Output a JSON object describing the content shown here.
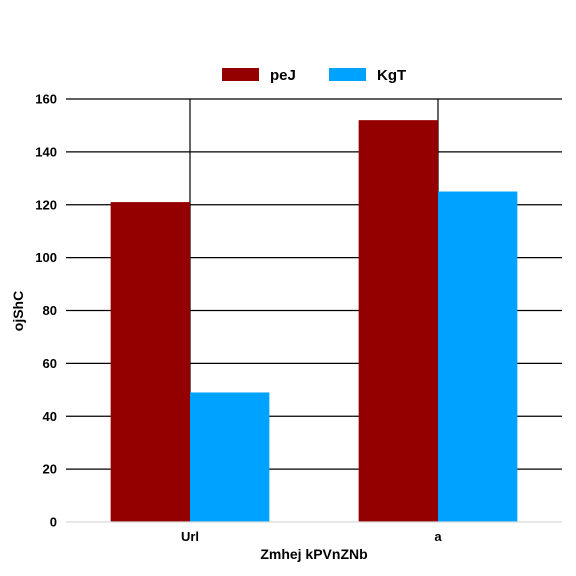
{
  "chart_data": {
    "type": "bar",
    "categories": [
      "Url",
      "a"
    ],
    "series": [
      {
        "name": "peJ",
        "values": [
          121,
          152
        ],
        "color": "#940000"
      },
      {
        "name": "KgT",
        "values": [
          49,
          125
        ],
        "color": "#00a2ff"
      }
    ],
    "xlabel": "Zmhej kPVnZNb",
    "ylabel": "ojShC",
    "ylim": [
      0,
      160
    ],
    "yticks": [
      0,
      20,
      40,
      60,
      80,
      100,
      120,
      140,
      160
    ],
    "grid": {
      "horizontal": true,
      "vertical_at_categories": true
    },
    "legend_position": "top-center"
  }
}
